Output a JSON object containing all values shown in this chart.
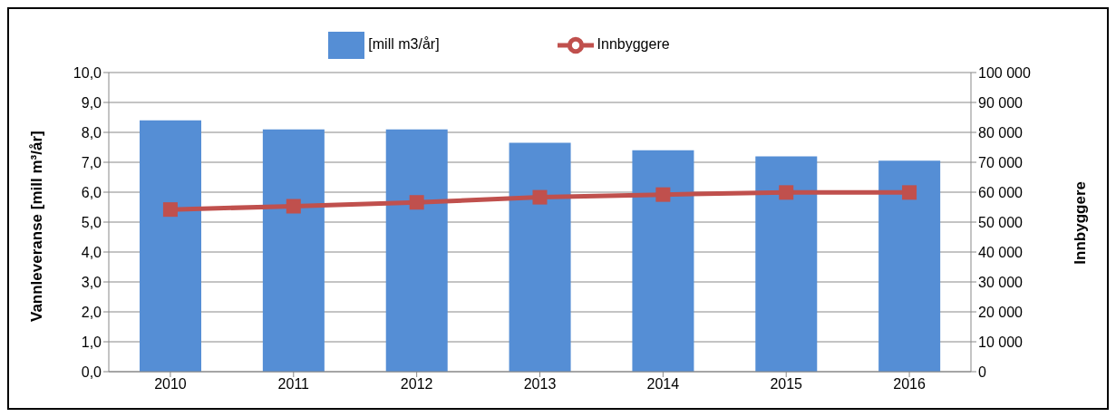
{
  "chart_data": {
    "type": "bar",
    "categories": [
      "2010",
      "2011",
      "2012",
      "2013",
      "2014",
      "2015",
      "2016"
    ],
    "series": [
      {
        "name": "[mill m3/år]",
        "color": "#558ed5",
        "values": [
          8.4,
          8.1,
          8.1,
          7.65,
          7.4,
          7.2,
          7.05
        ]
      },
      {
        "name": "Innbyggere",
        "type": "line",
        "axis": "y2",
        "color": "#c0504d",
        "marker": "square",
        "values": [
          54200,
          55300,
          56600,
          58300,
          59200,
          59900,
          59900
        ]
      }
    ],
    "ylabel": "Vannleveranse [mill m³/år]",
    "y2label": "Innbyggere",
    "ylim": [
      0,
      10
    ],
    "yticks": [
      {
        "value": 0,
        "label": "0,0"
      },
      {
        "value": 1,
        "label": "1,0"
      },
      {
        "value": 2,
        "label": "2,0"
      },
      {
        "value": 3,
        "label": "3,0"
      },
      {
        "value": 4,
        "label": "4,0"
      },
      {
        "value": 5,
        "label": "5,0"
      },
      {
        "value": 6,
        "label": "6,0"
      },
      {
        "value": 7,
        "label": "7,0"
      },
      {
        "value": 8,
        "label": "8,0"
      },
      {
        "value": 9,
        "label": "9,0"
      },
      {
        "value": 10,
        "label": "10,0"
      }
    ],
    "y2lim": [
      0,
      100000
    ],
    "y2ticks": [
      0,
      {
        "value": 10000,
        "label": "10 000"
      },
      {
        "value": 20000,
        "label": "20 000"
      },
      {
        "value": 30000,
        "label": "30 000"
      },
      {
        "value": 40000,
        "label": "40 000"
      },
      {
        "value": 50000,
        "label": "50 000"
      },
      {
        "value": 60000,
        "label": "60 000"
      },
      {
        "value": 70000,
        "label": "70 000"
      },
      {
        "value": 80000,
        "label": "80 000"
      },
      {
        "value": 90000,
        "label": "90 000"
      },
      {
        "value": 100000,
        "label": "100 000"
      }
    ],
    "grid": "y",
    "legend": "top"
  }
}
